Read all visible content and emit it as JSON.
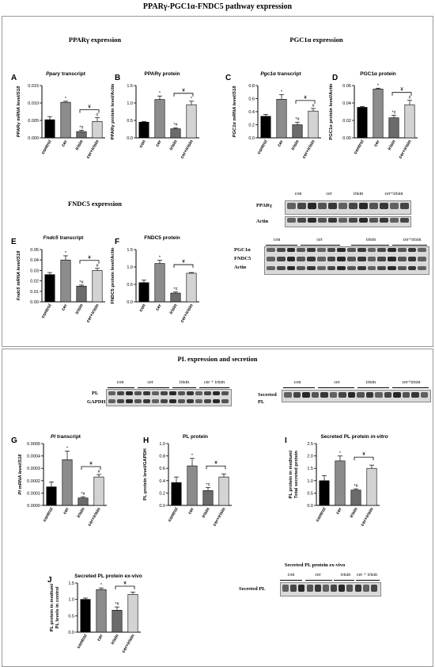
{
  "title": "PPARγ-PGC1α-FNDC5 pathway expression",
  "sections": {
    "pparg": "PPARγ expression",
    "pgc1a": "PGC1α expression",
    "fndc5": "FNDC5 expression",
    "pl": "PL expression and secretion"
  },
  "colors": {
    "control": "#000000",
    "cer": "#8c8c8c",
    "irisin": "#6b6b6b",
    "cer_irisin": "#d3d3d3"
  },
  "chart_data": [
    {
      "id": "A",
      "type": "bar",
      "title": "Pparγ transcript",
      "ylabel": "PPARγ mRNA level/S18",
      "categories": [
        "control",
        "cer",
        "irisin",
        "cer+irisin"
      ],
      "values": [
        0.0052,
        0.0102,
        0.0018,
        0.0047
      ],
      "errors": [
        0.0009,
        0.0003,
        0.0004,
        0.0011
      ],
      "ylim": [
        0,
        0.015
      ],
      "yticks": [
        "0.000",
        "0.005",
        "0.010",
        "0.015"
      ],
      "annotations": [
        "",
        "*",
        "*#",
        "#"
      ],
      "bracket_mark": "¥"
    },
    {
      "id": "B",
      "type": "bar",
      "title": "PPARγ protein",
      "ylabel": "PPARγ protein level/Actin",
      "categories": [
        "con",
        "cer",
        "irisin",
        "cer+irisin"
      ],
      "values": [
        0.45,
        1.1,
        0.26,
        0.95
      ],
      "errors": [
        0.02,
        0.1,
        0.03,
        0.1
      ],
      "ylim": [
        0,
        1.5
      ],
      "yticks": [
        "0.0",
        "0.5",
        "1.0",
        "1.5"
      ],
      "annotations": [
        "",
        "*",
        "*#",
        "*"
      ],
      "bracket_mark": "¥"
    },
    {
      "id": "C",
      "type": "bar",
      "title": "Pgc1α transcript",
      "ylabel": "PGC1α mRNA level/S18",
      "categories": [
        "control",
        "cer",
        "irisin",
        "cer+irisin"
      ],
      "values": [
        0.33,
        0.59,
        0.2,
        0.41
      ],
      "errors": [
        0.03,
        0.07,
        0.04,
        0.04
      ],
      "ylim": [
        0,
        0.8
      ],
      "yticks": [
        "0.0",
        "0.2",
        "0.4",
        "0.6",
        "0.8"
      ],
      "annotations": [
        "",
        "*",
        "*#",
        "#"
      ],
      "bracket_mark": "¥"
    },
    {
      "id": "D",
      "type": "bar",
      "title": "PGC1α protein",
      "ylabel": "PGC1α protein level/Actin",
      "categories": [
        "control",
        "cer",
        "irisin",
        "cer+irisin"
      ],
      "values": [
        0.035,
        0.056,
        0.023,
        0.038
      ],
      "errors": [
        0.001,
        0.001,
        0.003,
        0.005
      ],
      "ylim": [
        0,
        0.06
      ],
      "yticks": [
        "0.00",
        "0.02",
        "0.04",
        "0.06"
      ],
      "annotations": [
        "",
        "*",
        "*#",
        "#"
      ],
      "bracket_mark": "¥"
    },
    {
      "id": "E",
      "type": "bar",
      "title": "Fndc5 transcript",
      "ylabel": "Fndc5 mRNA level/S18",
      "categories": [
        "control",
        "cer",
        "irisin",
        "cer+irisin"
      ],
      "values": [
        0.026,
        0.04,
        0.015,
        0.03
      ],
      "errors": [
        0.002,
        0.004,
        0.001,
        0.002
      ],
      "ylim": [
        0,
        0.05
      ],
      "yticks": [
        "0.00",
        "0.01",
        "0.02",
        "0.03",
        "0.04",
        "0.05"
      ],
      "annotations": [
        "",
        "*",
        "*#",
        "#"
      ],
      "bracket_mark": "¥"
    },
    {
      "id": "F",
      "type": "bar",
      "title": "FNDC5 protein",
      "ylabel": "FNDC5 protein level/Actin",
      "categories": [
        "con",
        "cer",
        "irisin",
        "cer+irisin"
      ],
      "values": [
        0.55,
        1.1,
        0.25,
        0.82
      ],
      "errors": [
        0.07,
        0.09,
        0.03,
        0.02
      ],
      "ylim": [
        0,
        1.5
      ],
      "yticks": [
        "0.0",
        "0.5",
        "1.0",
        "1.5"
      ],
      "annotations": [
        "",
        "*",
        "*#",
        ""
      ],
      "bracket_mark": "¥"
    },
    {
      "id": "G",
      "type": "bar",
      "title": "Pl transcript",
      "ylabel": "Pl mRNA level/S18",
      "categories": [
        "control",
        "cer",
        "irisin",
        "cer+irisin"
      ],
      "values": [
        0.00015,
        0.00037,
        6e-05,
        0.00023
      ],
      "errors": [
        4e-05,
        7e-05,
        1e-05,
        2e-05
      ],
      "ylim": [
        0,
        0.0005
      ],
      "yticks": [
        "0.0000",
        "0.0001",
        "0.0002",
        "0.0003",
        "0.0004",
        "0.0005"
      ],
      "annotations": [
        "",
        "*",
        "*#",
        "#"
      ],
      "bracket_mark": "¥"
    },
    {
      "id": "H",
      "type": "bar",
      "title": "PL protein",
      "ylabel": "PL protein level/GAPDH",
      "categories": [
        "control",
        "cer",
        "irisin",
        "cer+irisin"
      ],
      "values": [
        0.37,
        0.64,
        0.24,
        0.46
      ],
      "errors": [
        0.09,
        0.12,
        0.05,
        0.05
      ],
      "ylim": [
        0,
        1.0
      ],
      "yticks": [
        "0.0",
        "0.2",
        "0.4",
        "0.6",
        "0.8",
        "1.0"
      ],
      "annotations": [
        "",
        "*",
        "*#",
        ""
      ],
      "bracket_mark": "¥"
    },
    {
      "id": "I",
      "type": "bar",
      "title": "Secreted PL protein in-vitro",
      "ylabel": "PL protein in medium/ Total secreted protein",
      "categories": [
        "control",
        "cer",
        "irisin",
        "cer+irisin"
      ],
      "values": [
        1.0,
        1.8,
        0.62,
        1.5
      ],
      "errors": [
        0.2,
        0.2,
        0.05,
        0.13
      ],
      "ylim": [
        0,
        2.5
      ],
      "yticks": [
        "0.0",
        "0.5",
        "1.0",
        "1.5",
        "2.0",
        "2.5"
      ],
      "annotations": [
        "",
        "*",
        "*#",
        ""
      ],
      "bracket_mark": "¥"
    },
    {
      "id": "J",
      "type": "bar",
      "title": "Secreted PL protein ex-vivo",
      "ylabel": "PL protein in medium/ PL levels in control",
      "categories": [
        "control",
        "cer",
        "irisin",
        "cer+irisin"
      ],
      "values": [
        1.0,
        1.3,
        0.67,
        1.15
      ],
      "errors": [
        0.04,
        0.05,
        0.1,
        0.07
      ],
      "ylim": [
        0,
        1.5
      ],
      "yticks": [
        "0.0",
        "0.5",
        "1.0",
        "1.5"
      ],
      "annotations": [
        "",
        "*",
        "*#",
        ""
      ],
      "bracket_mark": "¥"
    }
  ],
  "blots": {
    "pparg": {
      "headers": [
        "con",
        "cer",
        "irisin",
        "cer+irisin"
      ],
      "rows": [
        "PPARγ",
        "Actin"
      ]
    },
    "pgc": {
      "headers": [
        "con",
        "cer",
        "irisin",
        "cer+irisin"
      ],
      "rows": [
        "PGC1α",
        "FNDC5",
        "Actin"
      ]
    },
    "pl": {
      "headers": [
        "con",
        "cer",
        "irisin",
        "cer + irisin"
      ],
      "rows": [
        "PL",
        "GAPDH"
      ]
    },
    "secreted": {
      "headers": [
        "con",
        "cer",
        "irisin",
        "cer+irisin"
      ],
      "rows": [
        "Secreted PL"
      ]
    },
    "exvivo": {
      "title": "Secreted PL protein ex-vivo",
      "headers": [
        "con",
        "cer",
        "irisin",
        "cer + irisin"
      ],
      "rows": [
        "Secreted PL"
      ]
    }
  }
}
